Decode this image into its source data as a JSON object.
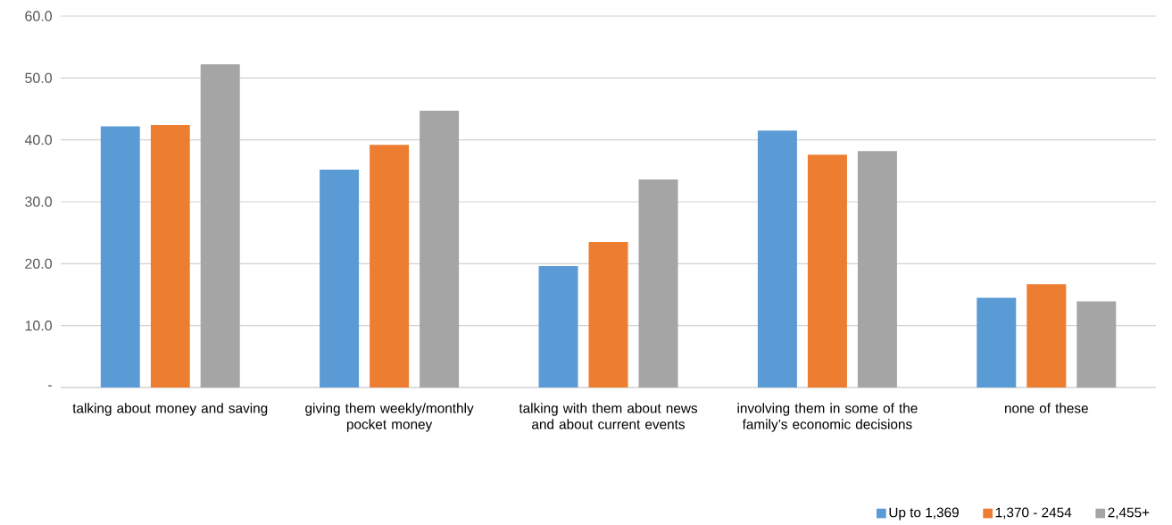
{
  "chart_data": {
    "type": "bar",
    "categories": [
      "talking about money and saving",
      "giving them weekly/monthly pocket money",
      "talking with them about news and about current events",
      "involving them in some of the family’s economic decisions",
      "none of these"
    ],
    "series": [
      {
        "name": "Up to 1,369",
        "color": "#5b9bd5",
        "values": [
          42.2,
          35.2,
          19.6,
          41.5,
          14.5
        ]
      },
      {
        "name": "1,370 - 2454",
        "color": "#ed7d31",
        "values": [
          42.4,
          39.2,
          23.5,
          37.6,
          16.7
        ]
      },
      {
        "name": "2,455+",
        "color": "#a5a5a5",
        "values": [
          52.2,
          44.7,
          33.6,
          38.2,
          13.9
        ]
      }
    ],
    "ylim": [
      0,
      60
    ],
    "yticks": [
      {
        "value": 0,
        "label": "-"
      },
      {
        "value": 10,
        "label": "10.0"
      },
      {
        "value": 20,
        "label": "20.0"
      },
      {
        "value": 30,
        "label": "30.0"
      },
      {
        "value": 40,
        "label": "40.0"
      },
      {
        "value": 50,
        "label": "50.0"
      },
      {
        "value": 60,
        "label": "60.0"
      }
    ],
    "grid": "y",
    "legend": "bottom right"
  }
}
